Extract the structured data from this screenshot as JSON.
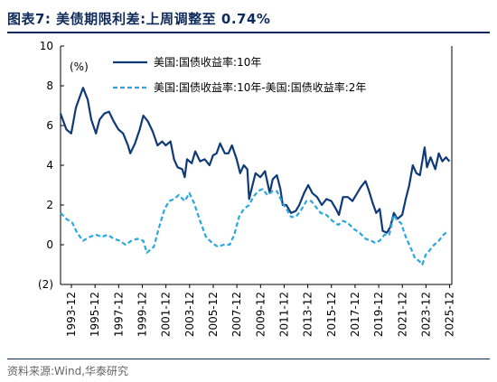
{
  "figure": {
    "title": "图表7:  美债期限利差:上周调整至 0.74%",
    "source_note": "资料来源:Wind,华泰研究"
  },
  "chart_data": {
    "type": "line",
    "ylabel": "(%)",
    "ylim": [
      -2,
      10
    ],
    "y_ticks": [
      -2,
      0,
      2,
      4,
      6,
      8,
      10
    ],
    "y_tick_labels": [
      "(2)",
      "0",
      "2",
      "4",
      "6",
      "8",
      "10"
    ],
    "xlim": [
      1993.0,
      2026.1
    ],
    "x_tick_labels": [
      "1993-12",
      "1995-12",
      "1997-12",
      "1999-12",
      "2001-12",
      "2003-12",
      "2005-12",
      "2007-12",
      "2009-12",
      "2011-12",
      "2013-12",
      "2015-12",
      "2017-12",
      "2019-12",
      "2021-12",
      "2023-12",
      "2025-12"
    ],
    "legend_position": "top",
    "colors": {
      "ten_year": "#0f3a78",
      "spread": "#2aa7dd"
    },
    "series": [
      {
        "name": "美国:国债收益率:10年",
        "style": "solid",
        "x": [
          1993.0,
          1993.5,
          1993.9,
          1994.3,
          1994.6,
          1994.9,
          1995.3,
          1995.6,
          1996.0,
          1996.3,
          1996.7,
          1997.1,
          1997.5,
          1997.9,
          1998.3,
          1998.7,
          1998.9,
          1999.3,
          1999.7,
          2000.0,
          2000.4,
          2000.8,
          2001.2,
          2001.6,
          2001.9,
          2002.3,
          2002.6,
          2002.9,
          2003.3,
          2003.5,
          2003.7,
          2004.1,
          2004.4,
          2004.8,
          2005.2,
          2005.6,
          2005.9,
          2006.2,
          2006.5,
          2006.9,
          2007.2,
          2007.5,
          2007.9,
          2008.2,
          2008.5,
          2008.8,
          2008.95,
          2009.2,
          2009.5,
          2009.9,
          2010.3,
          2010.7,
          2010.95,
          2011.3,
          2011.6,
          2011.8,
          2012.1,
          2012.5,
          2012.9,
          2013.2,
          2013.6,
          2013.95,
          2014.3,
          2014.7,
          2015.1,
          2015.5,
          2015.9,
          2016.3,
          2016.55,
          2016.9,
          2017.3,
          2017.7,
          2018.0,
          2018.4,
          2018.8,
          2019.1,
          2019.4,
          2019.7,
          2020.0,
          2020.25,
          2020.6,
          2020.9,
          2021.2,
          2021.5,
          2021.9,
          2022.2,
          2022.5,
          2022.8,
          2023.1,
          2023.4,
          2023.8,
          2024.0,
          2024.3,
          2024.7,
          2025.0,
          2025.3,
          2025.6,
          2025.9
        ],
        "values": [
          6.6,
          5.8,
          5.6,
          6.9,
          7.4,
          7.9,
          7.3,
          6.3,
          5.6,
          6.3,
          6.6,
          6.7,
          6.2,
          5.8,
          5.6,
          5.0,
          4.6,
          5.1,
          5.8,
          6.5,
          6.2,
          5.7,
          5.0,
          5.2,
          5.0,
          5.2,
          4.3,
          3.9,
          3.8,
          3.4,
          4.3,
          4.1,
          4.7,
          4.2,
          4.3,
          4.0,
          4.5,
          4.6,
          5.1,
          4.6,
          4.6,
          5.0,
          4.3,
          3.6,
          4.0,
          3.8,
          2.3,
          2.9,
          3.6,
          3.4,
          3.7,
          2.6,
          3.3,
          3.5,
          2.8,
          2.0,
          2.0,
          1.6,
          1.7,
          2.0,
          2.6,
          3.0,
          2.6,
          2.4,
          2.0,
          2.3,
          2.2,
          1.8,
          1.5,
          2.4,
          2.4,
          2.2,
          2.5,
          2.9,
          3.2,
          2.7,
          2.1,
          1.6,
          1.8,
          0.7,
          0.6,
          0.9,
          1.6,
          1.3,
          1.5,
          2.3,
          3.0,
          4.0,
          3.6,
          3.5,
          4.9,
          3.9,
          4.4,
          3.8,
          4.6,
          4.2,
          4.4,
          4.2
        ]
      },
      {
        "name": "美国:国债收益率:10年-美国:国债收益率:2年",
        "style": "dashed",
        "x": [
          1993.0,
          1993.5,
          1994.0,
          1994.4,
          1994.9,
          1995.5,
          1996.0,
          1996.5,
          1997.0,
          1997.5,
          1998.0,
          1998.5,
          1999.0,
          1999.5,
          2000.0,
          2000.3,
          2000.9,
          2001.3,
          2001.8,
          2002.2,
          2002.6,
          2003.0,
          2003.5,
          2003.9,
          2004.3,
          2004.8,
          2005.3,
          2005.8,
          2006.3,
          2006.8,
          2007.3,
          2007.7,
          2008.1,
          2008.5,
          2008.95,
          2009.3,
          2009.7,
          2010.1,
          2010.5,
          2010.95,
          2011.3,
          2011.7,
          2012.1,
          2012.5,
          2012.9,
          2013.3,
          2013.8,
          2014.2,
          2014.6,
          2015.0,
          2015.5,
          2016.0,
          2016.5,
          2016.9,
          2017.3,
          2017.8,
          2018.3,
          2018.8,
          2019.3,
          2019.6,
          2020.0,
          2020.4,
          2020.8,
          2021.2,
          2021.5,
          2021.8,
          2022.2,
          2022.5,
          2022.8,
          2023.0,
          2023.3,
          2023.6,
          2023.9,
          2024.2,
          2024.6,
          2025.0,
          2025.4,
          2025.8
        ],
        "values": [
          1.6,
          1.3,
          1.1,
          0.6,
          0.2,
          0.4,
          0.5,
          0.4,
          0.5,
          0.3,
          0.2,
          0.0,
          0.2,
          0.3,
          0.2,
          -0.4,
          -0.1,
          0.8,
          1.8,
          2.2,
          2.3,
          2.5,
          2.2,
          2.6,
          2.1,
          1.2,
          0.4,
          0.1,
          -0.1,
          0.0,
          0.0,
          0.5,
          1.4,
          1.8,
          2.0,
          2.4,
          2.7,
          2.8,
          2.5,
          2.7,
          2.7,
          2.2,
          1.8,
          1.4,
          1.4,
          1.7,
          2.2,
          2.2,
          1.9,
          1.6,
          1.5,
          1.2,
          1.0,
          1.2,
          1.1,
          0.8,
          0.6,
          0.3,
          0.2,
          0.1,
          0.2,
          0.5,
          0.5,
          1.5,
          1.2,
          1.1,
          0.4,
          0.0,
          -0.4,
          -0.7,
          -0.8,
          -1.0,
          -0.5,
          -0.3,
          0.0,
          0.2,
          0.5,
          0.7
        ]
      }
    ]
  }
}
